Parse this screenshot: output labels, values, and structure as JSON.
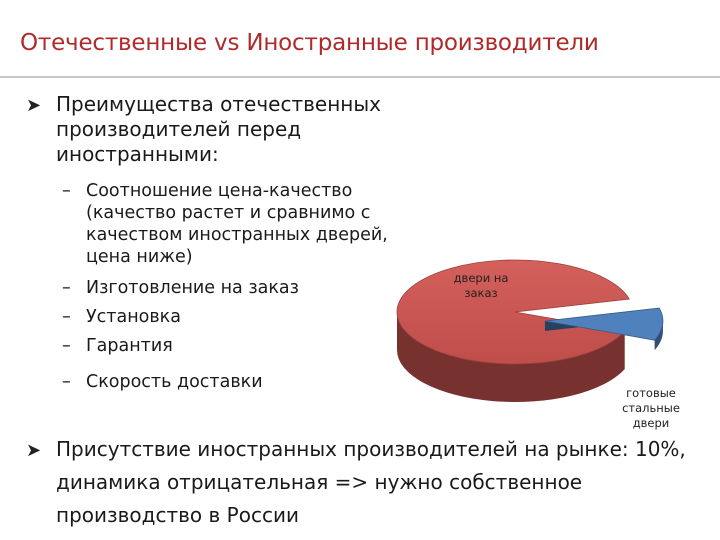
{
  "slide": {
    "title": "Отечественные vs Иностранные производители",
    "bullet1": {
      "text": "Преимущества отечественных производителей перед иностранными:",
      "items": [
        "Соотношение цена-качество (качество растет и сравнимо с качеством иностранных дверей, цена ниже)",
        "Изготовление на заказ",
        "Установка",
        "Гарантия",
        "Скорость доставки"
      ]
    },
    "bullet2": {
      "text": "Присутствие иностранных производителей на рынке: 10%, динамика отрицательная => нужно собственное производство в России"
    },
    "icons": {
      "bullet": "arrow-bullet-icon"
    },
    "colors": {
      "title": "#b02a2a",
      "slice_main": "#c0504d",
      "slice_minor": "#4f81bd"
    }
  },
  "chart_data": {
    "type": "pie",
    "title": "",
    "categories": [
      "двери на заказ",
      "готовые стальные двери"
    ],
    "values": [
      90,
      10
    ],
    "colors": [
      "#c0504d",
      "#4f81bd"
    ],
    "style": "3d-exploded"
  }
}
